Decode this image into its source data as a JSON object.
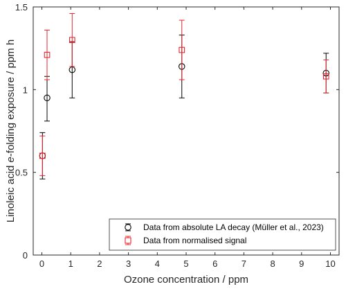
{
  "chart_data": {
    "type": "scatter",
    "title": "",
    "xlabel": "Ozone concentration / ppm",
    "ylabel": {
      "before": "Linoleic acid ",
      "italic": "e",
      "after": "-folding exposure / ppm h"
    },
    "xlim": [
      -0.3,
      10.3
    ],
    "ylim": [
      0,
      1.5
    ],
    "xticks": [
      0,
      1,
      2,
      3,
      4,
      5,
      6,
      7,
      8,
      9,
      10
    ],
    "yticks": [
      0,
      0.5,
      1,
      1.5
    ],
    "ytick_labels": [
      "0",
      "0.5",
      "1",
      "1.5"
    ],
    "grid": false,
    "legend_position": "bottom-right",
    "series": [
      {
        "name": "Data from absolute LA decay (Müller et al., 2023)",
        "color": "#000000",
        "marker": "circle",
        "points": [
          {
            "x": 0.02,
            "y": 0.6,
            "err_low": 0.14,
            "err_high": 0.14
          },
          {
            "x": 0.18,
            "y": 0.95,
            "err_low": 0.14,
            "err_high": 0.13
          },
          {
            "x": 1.05,
            "y": 1.12,
            "err_low": 0.17,
            "err_high": 0.17
          },
          {
            "x": 4.85,
            "y": 1.14,
            "err_low": 0.19,
            "err_high": 0.19
          },
          {
            "x": 9.85,
            "y": 1.1,
            "err_low": 0.12,
            "err_high": 0.12
          }
        ]
      },
      {
        "name": "Data from normalised signal",
        "color": "#e8242b",
        "marker": "square",
        "points": [
          {
            "x": 0.02,
            "y": 0.6,
            "err_low": 0.12,
            "err_high": 0.12
          },
          {
            "x": 0.18,
            "y": 1.21,
            "err_low": 0.15,
            "err_high": 0.15
          },
          {
            "x": 1.05,
            "y": 1.3,
            "err_low": 0.16,
            "err_high": 0.16
          },
          {
            "x": 4.85,
            "y": 1.24,
            "err_low": 0.18,
            "err_high": 0.18
          },
          {
            "x": 9.85,
            "y": 1.08,
            "err_low": 0.1,
            "err_high": 0.1
          }
        ]
      }
    ]
  }
}
